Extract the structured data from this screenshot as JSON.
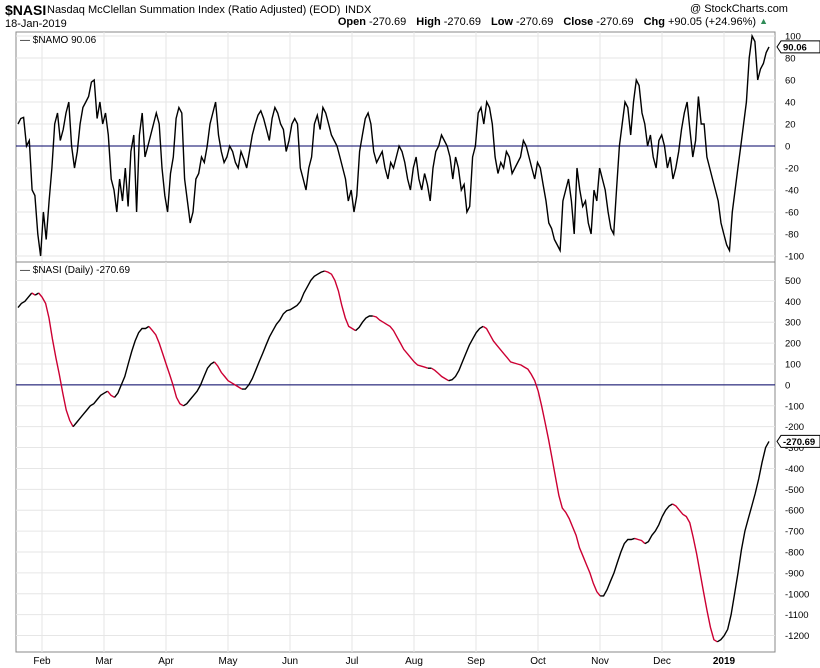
{
  "header": {
    "symbol": "$NASI",
    "index_name": "Nasdaq McClellan Summation Index (Ratio Adjusted) (EOD)",
    "index_code": "INDX",
    "date": "18-Jan-2019",
    "watermark": "@ StockCharts.com",
    "open_label": "Open",
    "open": "-270.69",
    "high_label": "High",
    "high": "-270.69",
    "low_label": "Low",
    "low": "-270.69",
    "close_label": "Close",
    "close": "-270.69",
    "chg_label": "Chg",
    "chg": "+90.05 (+24.96%)",
    "chg_arrow": "▲"
  },
  "colors": {
    "up": "#000000",
    "down": "#cc0033",
    "zero_line": "#000066",
    "grid": "#e6e6e6"
  },
  "chart_data": [
    {
      "type": "line",
      "legend": "$NAMO 90.06",
      "last_value_label": "90.06",
      "ylim": [
        -100,
        100
      ],
      "yticks": [
        100,
        80,
        60,
        40,
        20,
        0,
        -20,
        -40,
        -60,
        -80,
        -100
      ],
      "reference_line": 0,
      "series": [
        {
          "values": [
            20,
            25,
            26,
            0,
            5,
            -40,
            -45,
            -80,
            -100,
            -60,
            -85,
            -50,
            -20,
            20,
            30,
            5,
            15,
            30,
            40,
            0,
            -20,
            -5,
            20,
            35,
            40,
            45,
            58,
            60,
            25,
            40,
            20,
            30,
            10,
            -30,
            -40,
            -60,
            -30,
            -50,
            -20,
            -55,
            -5,
            10,
            -60,
            10,
            30,
            -10,
            0,
            10,
            20,
            30,
            20,
            -20,
            -45,
            -60,
            -25,
            -10,
            25,
            35,
            30,
            -30,
            -50,
            -70,
            -60,
            -30,
            -25,
            -10,
            -15,
            0,
            20,
            30,
            40,
            10,
            -5,
            -15,
            -10,
            0,
            -5,
            -15,
            -20,
            -5,
            -12,
            -20,
            -5,
            10,
            20,
            28,
            32,
            25,
            15,
            5,
            25,
            35,
            30,
            20,
            15,
            -5,
            5,
            20,
            25,
            20,
            -20,
            -30,
            -40,
            -20,
            -10,
            20,
            28,
            15,
            35,
            30,
            20,
            10,
            5,
            0,
            -10,
            -20,
            -30,
            -50,
            -40,
            -60,
            -45,
            -5,
            10,
            25,
            30,
            20,
            -5,
            -15,
            -10,
            -5,
            -20,
            -30,
            -15,
            -20,
            -10,
            0,
            -5,
            -15,
            -30,
            -40,
            -20,
            -10,
            -30,
            -40,
            -25,
            -35,
            -50,
            -20,
            -5,
            0,
            10,
            5,
            0,
            -10,
            -30,
            -10,
            -20,
            -40,
            -35,
            -60,
            -55,
            -10,
            0,
            30,
            35,
            20,
            40,
            35,
            20,
            -10,
            -25,
            -15,
            -20,
            -5,
            -10,
            -25,
            -20,
            -15,
            -10,
            5,
            0,
            -10,
            -20,
            -30,
            -15,
            -20,
            -35,
            -50,
            -70,
            -75,
            -85,
            -90,
            -95,
            -50,
            -40,
            -30,
            -50,
            -80,
            -20,
            -40,
            -55,
            -50,
            -70,
            -80,
            -40,
            -50,
            -20,
            -30,
            -40,
            -60,
            -75,
            -80,
            -40,
            0,
            20,
            40,
            35,
            10,
            40,
            60,
            55,
            30,
            20,
            0,
            10,
            -10,
            -20,
            5,
            10,
            0,
            -20,
            -10,
            -30,
            -20,
            -5,
            15,
            30,
            40,
            15,
            -10,
            5,
            45,
            20,
            20,
            -10,
            -20,
            -30,
            -40,
            -50,
            -70,
            -80,
            -90,
            -95,
            -60,
            -40,
            -20,
            0,
            20,
            40,
            80,
            100,
            95,
            60,
            70,
            75,
            85,
            90.06
          ]
        }
      ]
    },
    {
      "type": "line",
      "legend": "$NASI (Daily) -270.69",
      "last_value_label": "-270.69",
      "ylim": [
        -1250,
        550
      ],
      "yticks": [
        500,
        400,
        300,
        200,
        100,
        0,
        -100,
        -200,
        -300,
        -400,
        -500,
        -600,
        -700,
        -800,
        -900,
        -1000,
        -1100,
        -1200
      ],
      "reference_line": 0,
      "x_labels": [
        "Feb",
        "Mar",
        "Apr",
        "May",
        "Jun",
        "Jul",
        "Aug",
        "Sep",
        "Oct",
        "Nov",
        "Dec",
        "2019"
      ],
      "series": [
        {
          "values": [
            370,
            390,
            400,
            420,
            440,
            430,
            440,
            420,
            390,
            320,
            220,
            130,
            50,
            -40,
            -120,
            -170,
            -200,
            -180,
            -160,
            -140,
            -120,
            -100,
            -90,
            -70,
            -50,
            -40,
            -30,
            -50,
            -60,
            -40,
            0,
            40,
            100,
            160,
            210,
            250,
            270,
            270,
            280,
            260,
            240,
            200,
            150,
            100,
            50,
            0,
            -60,
            -90,
            -100,
            -90,
            -70,
            -50,
            -30,
            0,
            40,
            80,
            100,
            110,
            90,
            60,
            40,
            20,
            10,
            0,
            -10,
            -20,
            -20,
            0,
            30,
            70,
            110,
            150,
            190,
            230,
            260,
            290,
            310,
            340,
            355,
            360,
            370,
            380,
            400,
            440,
            470,
            500,
            520,
            530,
            540,
            545,
            540,
            530,
            500,
            450,
            380,
            320,
            280,
            270,
            260,
            275,
            300,
            320,
            330,
            330,
            325,
            310,
            300,
            290,
            280,
            260,
            230,
            200,
            170,
            150,
            130,
            110,
            95,
            90,
            85,
            80,
            80,
            70,
            55,
            40,
            30,
            20,
            25,
            40,
            70,
            110,
            150,
            190,
            220,
            250,
            270,
            280,
            270,
            240,
            210,
            190,
            170,
            150,
            130,
            110,
            105,
            100,
            95,
            85,
            75,
            50,
            20,
            -30,
            -100,
            -180,
            -260,
            -350,
            -440,
            -530,
            -590,
            -610,
            -640,
            -680,
            -720,
            -780,
            -820,
            -860,
            -900,
            -950,
            -990,
            -1010,
            -1010,
            -980,
            -940,
            -900,
            -850,
            -800,
            -760,
            -740,
            -740,
            -735,
            -740,
            -745,
            -760,
            -750,
            -720,
            -700,
            -670,
            -630,
            -600,
            -580,
            -570,
            -580,
            -600,
            -620,
            -630,
            -660,
            -730,
            -810,
            -900,
            -990,
            -1080,
            -1160,
            -1220,
            -1230,
            -1220,
            -1200,
            -1170,
            -1100,
            -1000,
            -900,
            -790,
            -700,
            -640,
            -580,
            -520,
            -450,
            -370,
            -300,
            -270.69
          ]
        }
      ]
    }
  ]
}
